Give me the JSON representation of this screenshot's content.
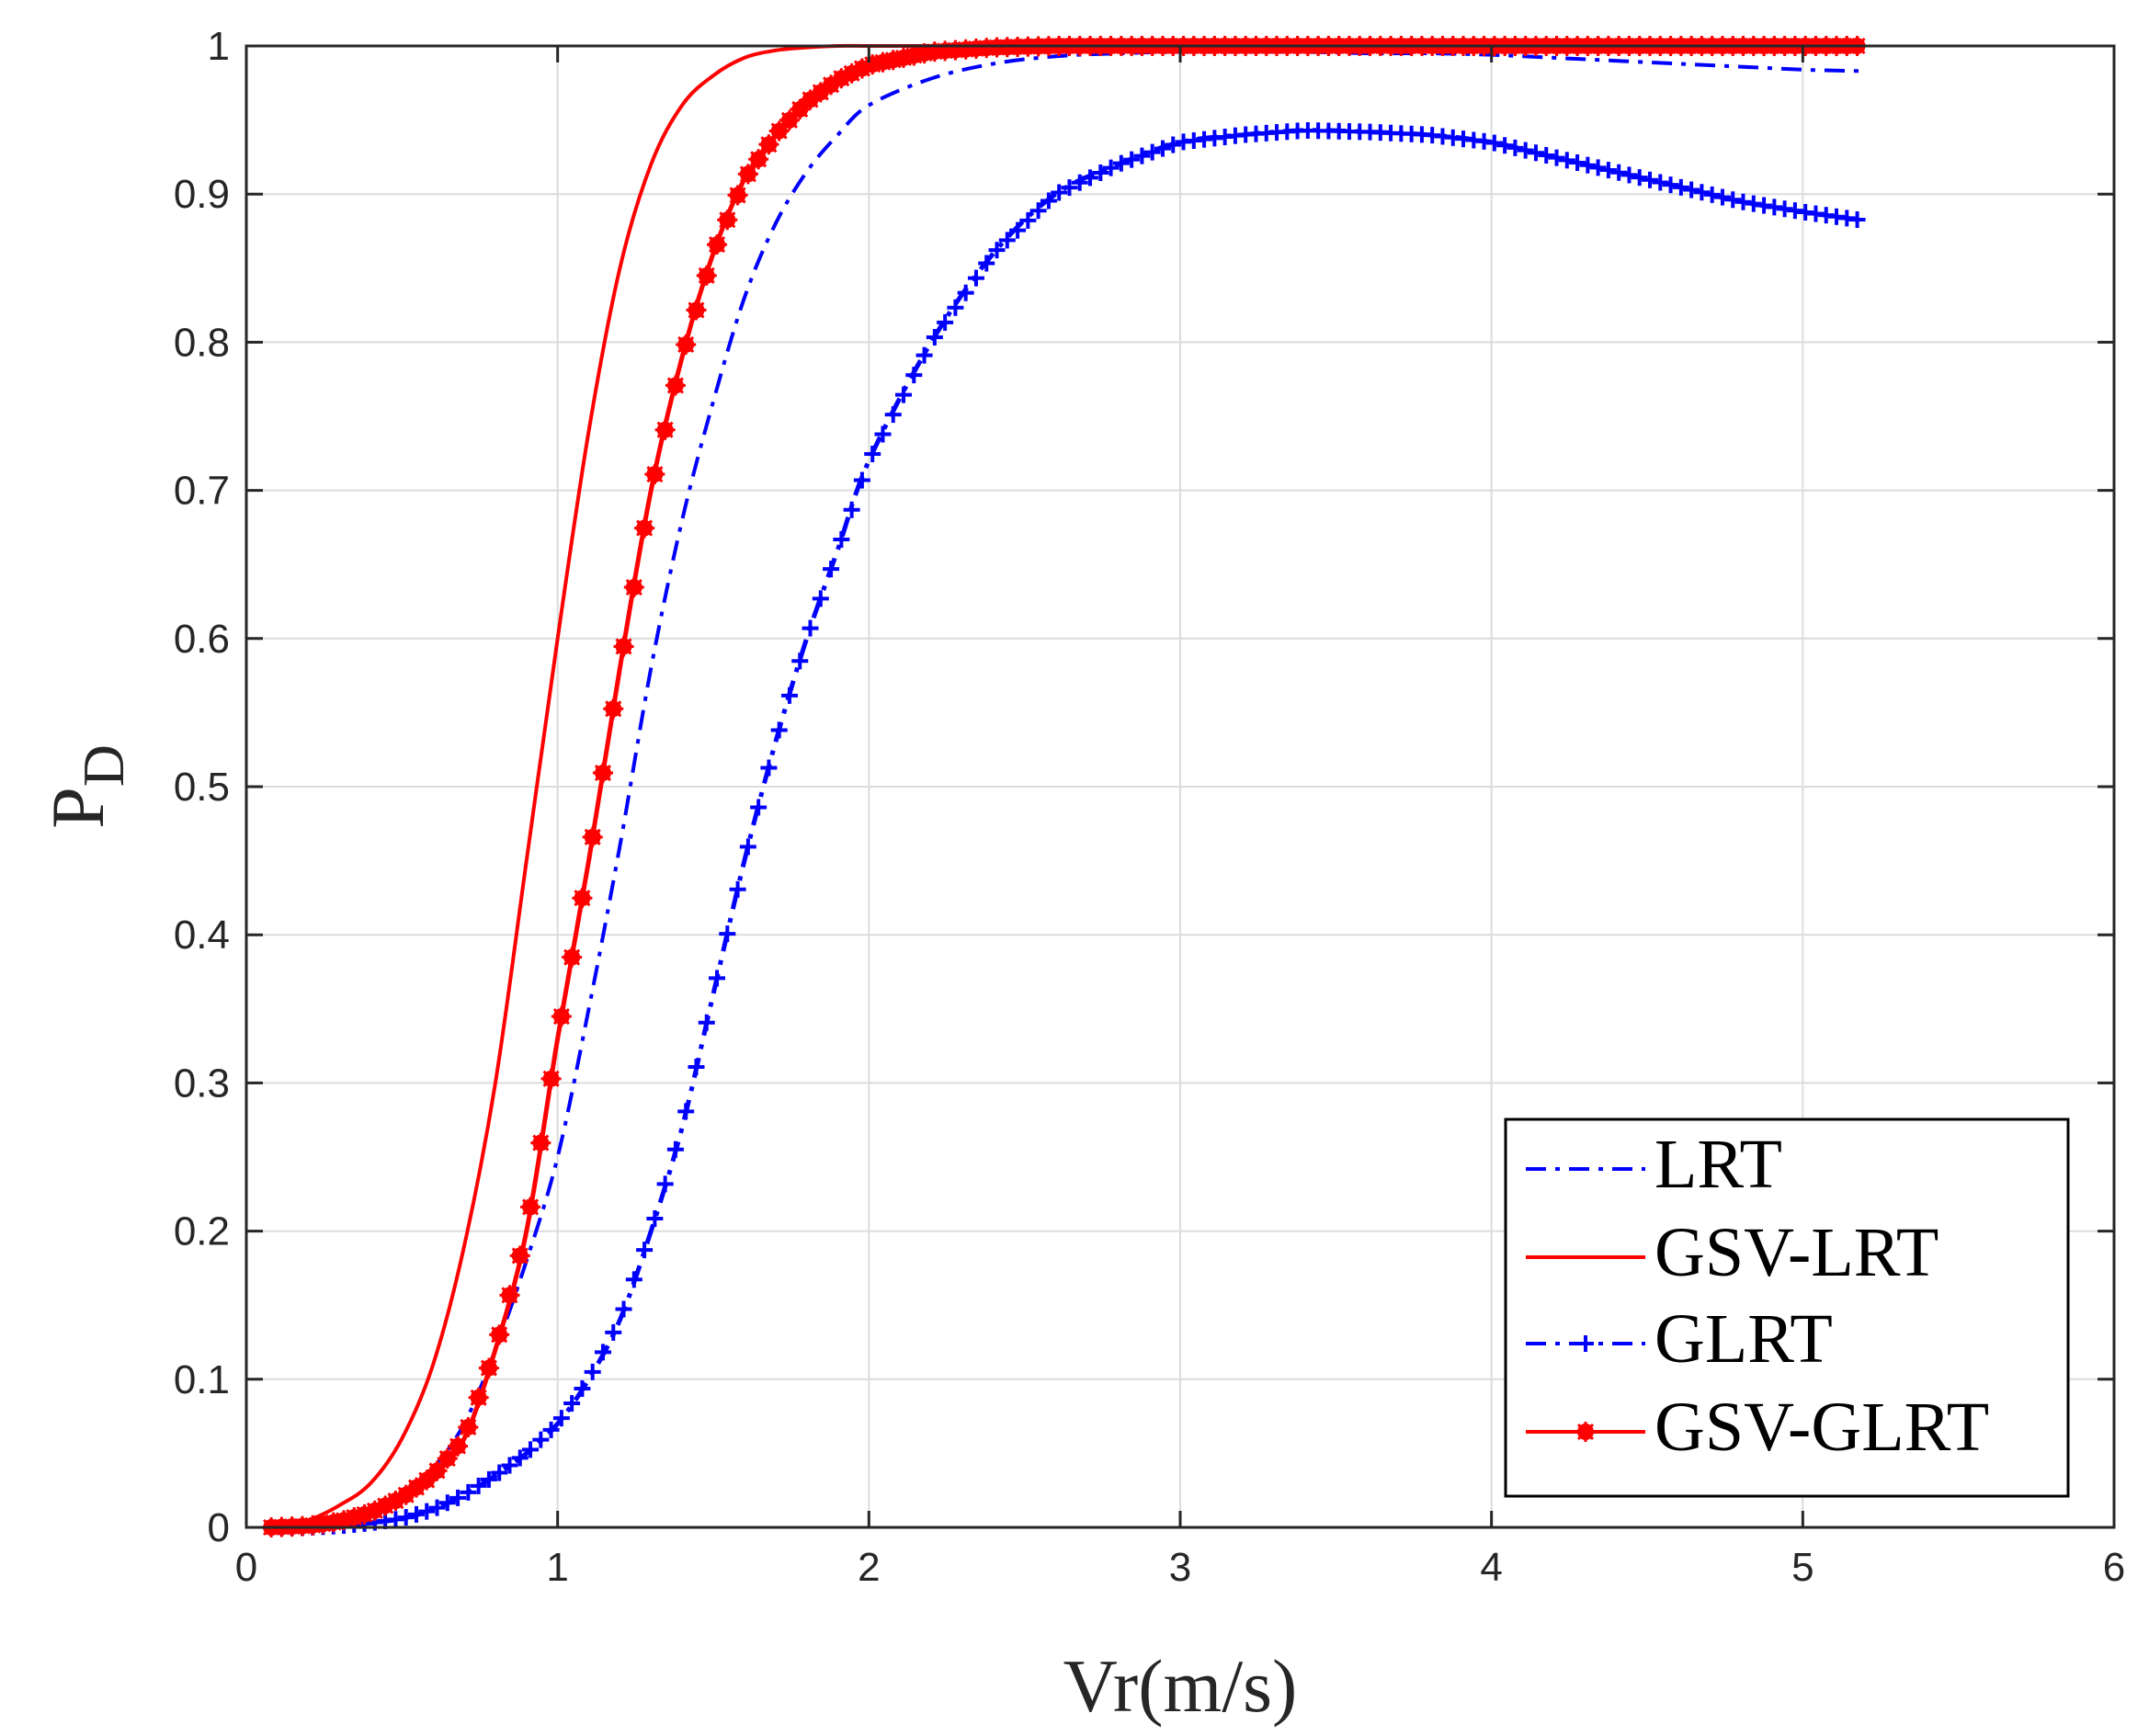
{
  "chart_data": {
    "type": "line",
    "title": "",
    "xlabel": "Vr(m/s)",
    "ylabel_main": "P",
    "ylabel_sub": "D",
    "xlim": [
      0,
      6
    ],
    "ylim": [
      0,
      1
    ],
    "grid": true,
    "legend_position": "bottom-right",
    "x_ticks": [
      "0",
      "1",
      "2",
      "3",
      "4",
      "5",
      "6"
    ],
    "y_ticks": [
      "0",
      "0.1",
      "0.2",
      "0.3",
      "0.4",
      "0.5",
      "0.6",
      "0.7",
      "0.8",
      "0.9",
      "1"
    ],
    "x": [
      0.08,
      0.2,
      0.3,
      0.4,
      0.5,
      0.6,
      0.7,
      0.8,
      0.9,
      1.0,
      1.1,
      1.2,
      1.3,
      1.4,
      1.5,
      1.6,
      1.7,
      1.8,
      1.9,
      2.0,
      2.2,
      2.4,
      2.6,
      2.8,
      3.0,
      3.2,
      3.4,
      3.6,
      3.8,
      4.0,
      4.2,
      4.4,
      4.6,
      4.8,
      5.0,
      5.2
    ],
    "series": [
      {
        "name": "LRT",
        "color": "#0000ff",
        "style": "dash-dot",
        "marker": "none",
        "values": [
          0.0,
          0.002,
          0.006,
          0.012,
          0.02,
          0.04,
          0.07,
          0.12,
          0.18,
          0.25,
          0.35,
          0.46,
          0.58,
          0.68,
          0.76,
          0.83,
          0.88,
          0.915,
          0.94,
          0.96,
          0.978,
          0.988,
          0.993,
          0.995,
          0.996,
          0.996,
          0.996,
          0.995,
          0.995,
          0.994,
          0.992,
          0.99,
          0.988,
          0.986,
          0.984,
          0.983
        ]
      },
      {
        "name": "GSV-LRT",
        "color": "#ff0000",
        "style": "solid",
        "marker": "none",
        "values": [
          0.0,
          0.005,
          0.015,
          0.03,
          0.06,
          0.11,
          0.19,
          0.3,
          0.45,
          0.6,
          0.74,
          0.85,
          0.92,
          0.96,
          0.98,
          0.992,
          0.997,
          0.999,
          1.0,
          1.0,
          1.0,
          1.0,
          1.0,
          1.0,
          1.0,
          1.0,
          1.0,
          1.0,
          1.0,
          1.0,
          1.0,
          1.0,
          1.0,
          1.0,
          1.0,
          1.0
        ]
      },
      {
        "name": "GLRT",
        "color": "#0000ff",
        "style": "dash-dot",
        "marker": "plus",
        "values": [
          0.0,
          0.0,
          0.001,
          0.003,
          0.006,
          0.012,
          0.022,
          0.035,
          0.05,
          0.07,
          0.1,
          0.14,
          0.2,
          0.27,
          0.36,
          0.45,
          0.53,
          0.6,
          0.66,
          0.72,
          0.8,
          0.86,
          0.9,
          0.92,
          0.935,
          0.94,
          0.943,
          0.942,
          0.94,
          0.935,
          0.925,
          0.915,
          0.905,
          0.895,
          0.888,
          0.882
        ]
      },
      {
        "name": "GSV-GLRT",
        "color": "#ff0000",
        "style": "solid",
        "marker": "asterisk",
        "values": [
          0.0,
          0.001,
          0.004,
          0.01,
          0.02,
          0.035,
          0.06,
          0.12,
          0.2,
          0.33,
          0.45,
          0.58,
          0.7,
          0.79,
          0.86,
          0.91,
          0.94,
          0.962,
          0.977,
          0.987,
          0.996,
          0.999,
          1.0,
          1.0,
          1.0,
          1.0,
          1.0,
          1.0,
          1.0,
          1.0,
          1.0,
          1.0,
          1.0,
          1.0,
          1.0,
          1.0
        ]
      }
    ]
  }
}
